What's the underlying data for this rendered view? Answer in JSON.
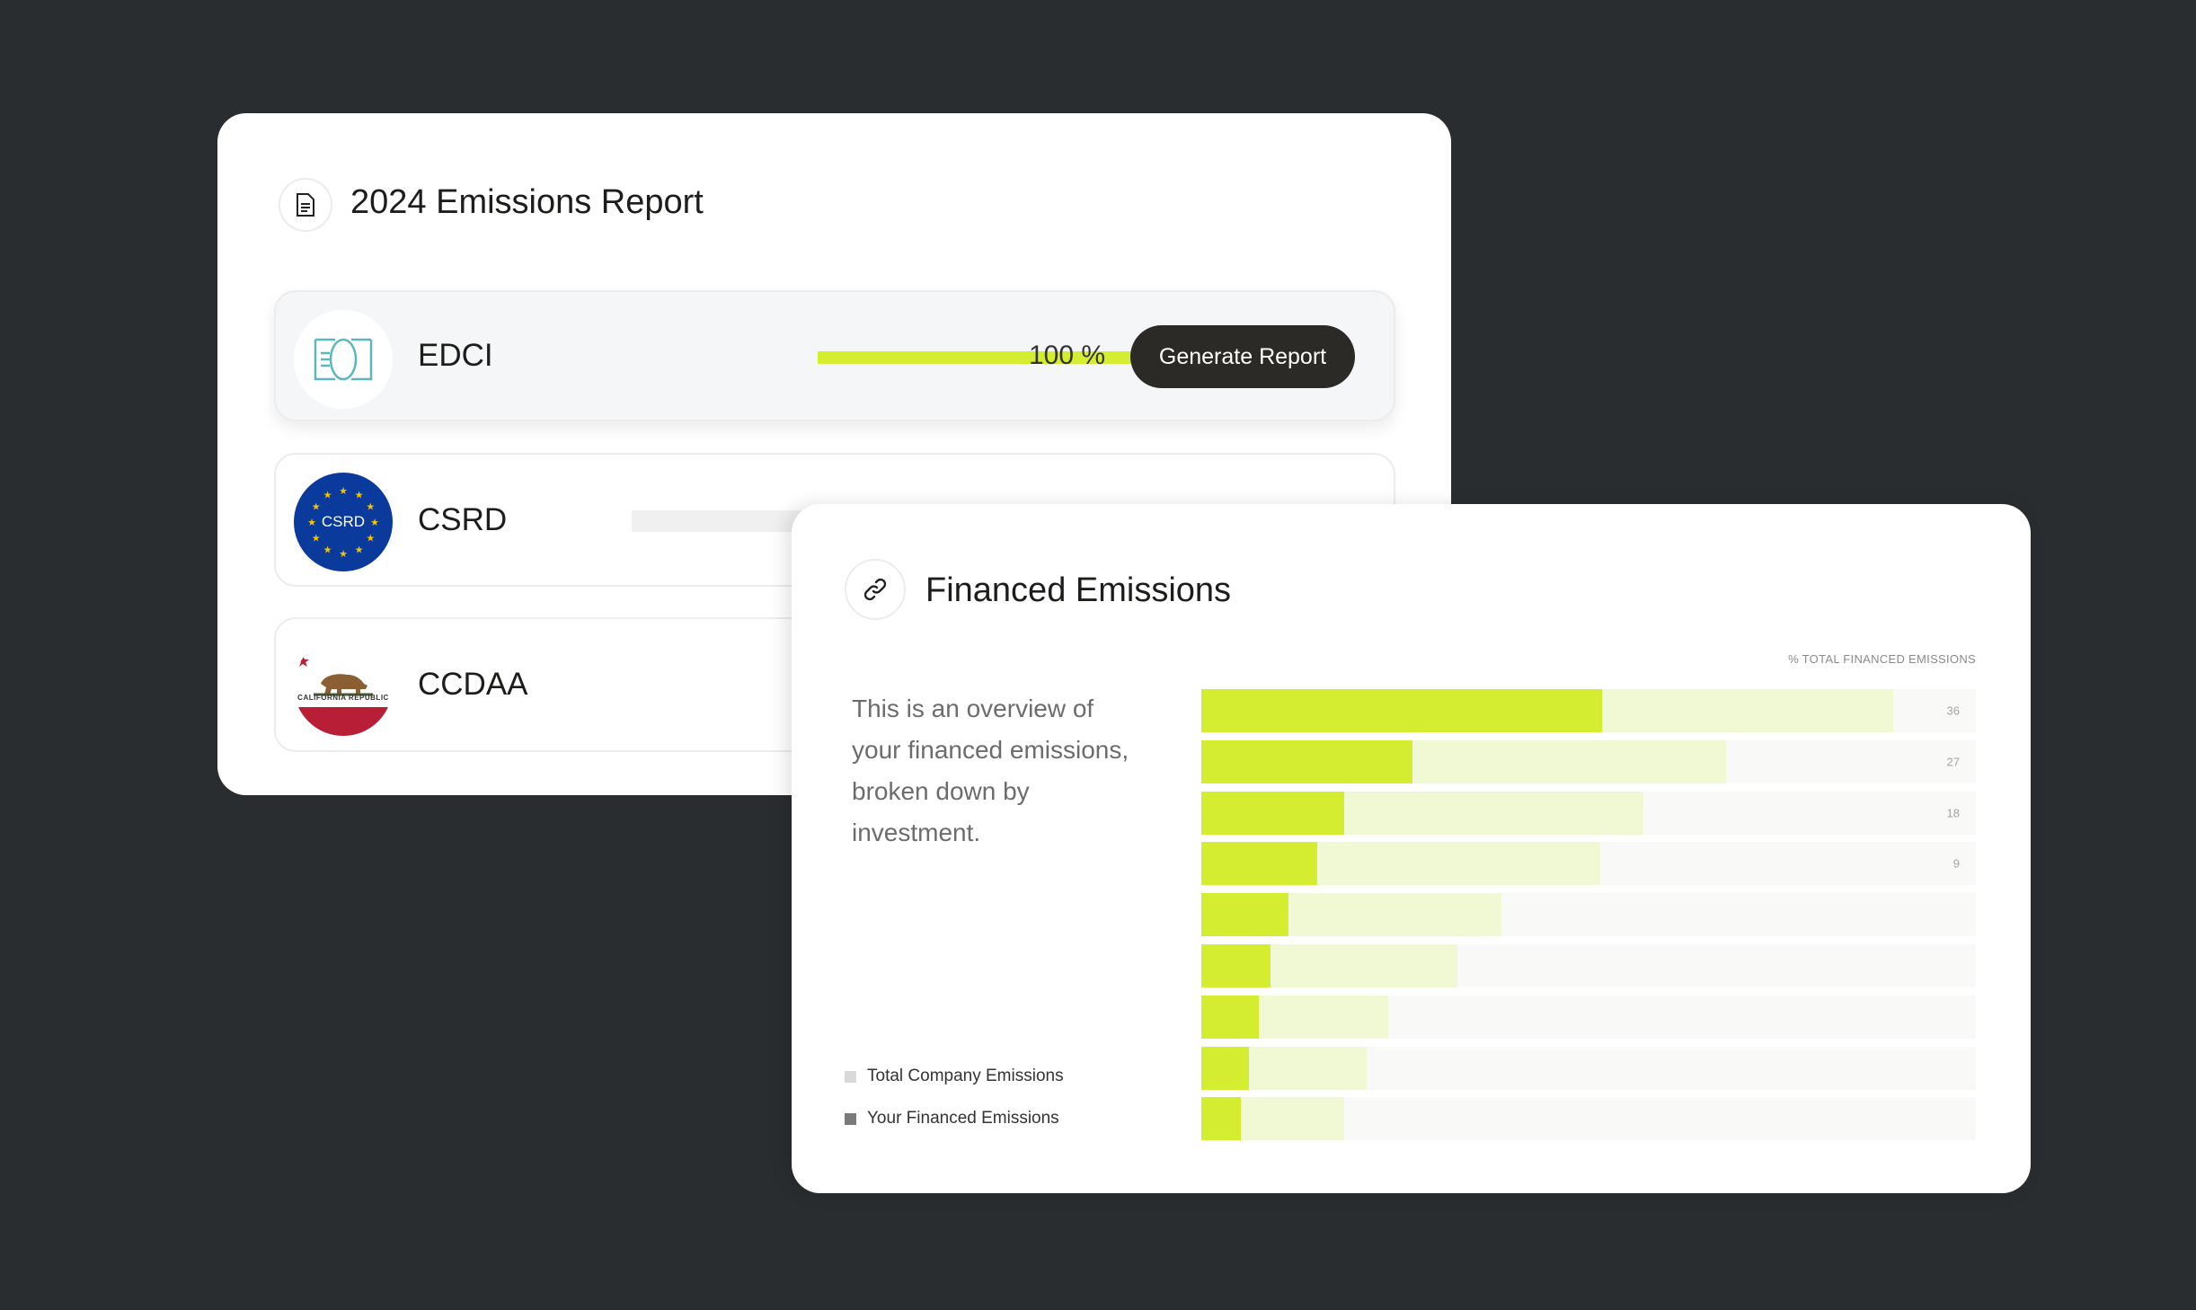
{
  "report": {
    "title": "2024 Emissions Report",
    "icon": "document-icon",
    "rows": [
      {
        "name": "EDCI",
        "progress_percent": 100,
        "progress_label": "100 %",
        "button": "Generate Report",
        "logo": "edci-logo"
      },
      {
        "name": "CSRD",
        "logo": "csrd-eu-logo",
        "logo_text": "CSRD"
      },
      {
        "name": "CCDAA",
        "logo": "california-flag-logo",
        "logo_text": "CALIFORNIA REPUBLIC"
      }
    ]
  },
  "financed": {
    "title": "Financed Emissions",
    "icon": "link-icon",
    "description": "This is an overview of your financed emissions, broken down by investment.",
    "legend": [
      {
        "label": "Total Company Emissions",
        "color": "#d9d9d9"
      },
      {
        "label": "Your Financed Emissions",
        "color": "#7a7a7a"
      }
    ]
  },
  "chart_data": {
    "type": "bar",
    "orientation": "horizontal",
    "stacked": "overlay",
    "axis_label": "% TOTAL FINANCED EMISSIONS",
    "tick_labels": [
      "36",
      "27",
      "18",
      "9"
    ],
    "colors": {
      "financed": "#d4ed31",
      "total": "#f1f8d4",
      "track": "#f9f9f7"
    },
    "series": [
      {
        "name": "Your Financed Emissions",
        "values": [
          51.7,
          27.3,
          18.4,
          15.0,
          11.2,
          8.9,
          7.4,
          6.1,
          5.1
        ]
      },
      {
        "name": "Total Company Emissions",
        "values": [
          89.3,
          67.8,
          57.1,
          51.5,
          38.7,
          33.1,
          24.1,
          21.3,
          18.4
        ]
      }
    ]
  },
  "colors": {
    "background": "#2a2d30",
    "accent": "#d4ed31",
    "button": "#2b2a27"
  }
}
